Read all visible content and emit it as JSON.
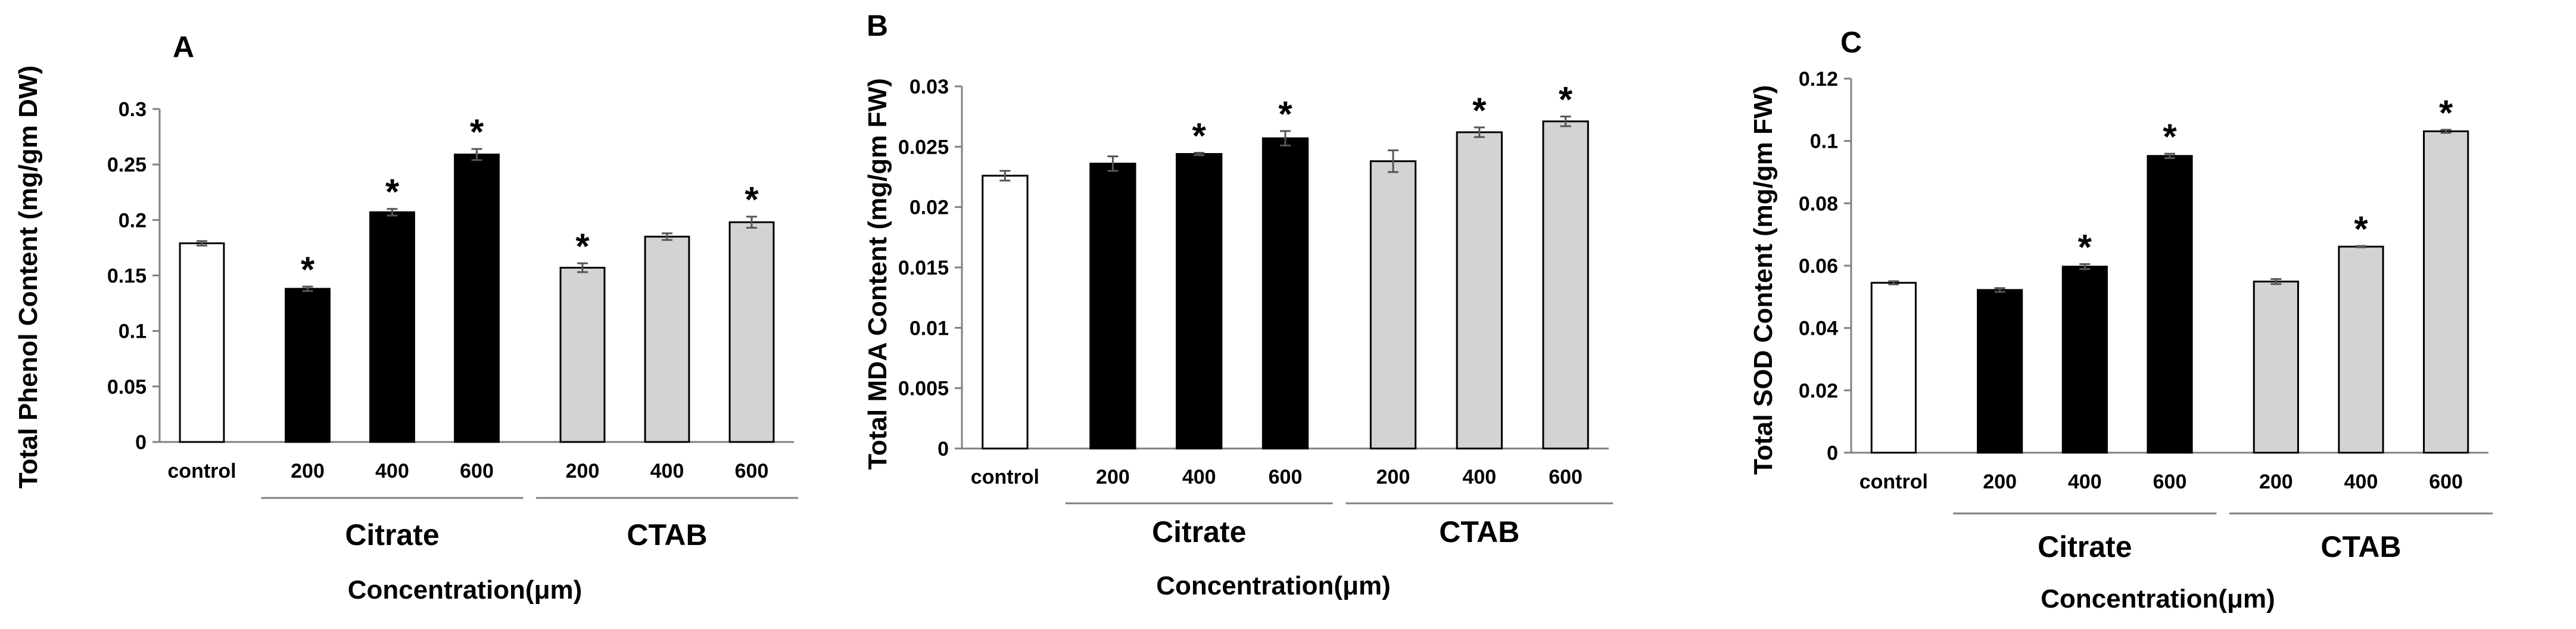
{
  "chart_data": [
    {
      "panel": "A",
      "type": "bar",
      "ylabel": "Total Phenol Content (mg/gm DW)",
      "xlabel": "Concentration(μm)",
      "ylim": [
        0,
        0.3
      ],
      "yticks": [
        "0",
        "0.05",
        "0.1",
        "0.15",
        "0.2",
        "0.25",
        "0.3"
      ],
      "categories": [
        "control",
        "200",
        "400",
        "600",
        "200",
        "400",
        "600"
      ],
      "groups": [
        {
          "label": "Citrate",
          "members": [
            1,
            2,
            3
          ]
        },
        {
          "label": "CTAB",
          "members": [
            4,
            5,
            6
          ]
        }
      ],
      "values": [
        0.179,
        0.138,
        0.207,
        0.259,
        0.157,
        0.185,
        0.198
      ],
      "errors": [
        0.002,
        0.002,
        0.003,
        0.005,
        0.004,
        0.003,
        0.005
      ],
      "significant": [
        false,
        true,
        true,
        true,
        true,
        false,
        true
      ],
      "fills": [
        "#ffffff",
        "#000000",
        "#000000",
        "#000000",
        "#d3d3d3",
        "#d3d3d3",
        "#d3d3d3"
      ],
      "sig_marker": "*"
    },
    {
      "panel": "B",
      "type": "bar",
      "ylabel": "Total MDA Content (mg/gm FW)",
      "xlabel": "Concentration(μm)",
      "ylim": [
        0,
        0.03
      ],
      "yticks": [
        "0",
        "0.005",
        "0.01",
        "0.015",
        "0.02",
        "0.025",
        "0.03"
      ],
      "categories": [
        "control",
        "200",
        "400",
        "600",
        "200",
        "400",
        "600"
      ],
      "groups": [
        {
          "label": "Citrate",
          "members": [
            1,
            2,
            3
          ]
        },
        {
          "label": "CTAB",
          "members": [
            4,
            5,
            6
          ]
        }
      ],
      "values": [
        0.0226,
        0.0236,
        0.0244,
        0.0257,
        0.0238,
        0.0262,
        0.0271
      ],
      "errors": [
        0.0004,
        0.0006,
        0.0001,
        0.0006,
        0.0009,
        0.0004,
        0.0004
      ],
      "significant": [
        false,
        false,
        true,
        true,
        false,
        true,
        true
      ],
      "fills": [
        "#ffffff",
        "#000000",
        "#000000",
        "#000000",
        "#d3d3d3",
        "#d3d3d3",
        "#d3d3d3"
      ],
      "sig_marker": "*"
    },
    {
      "panel": "C",
      "type": "bar",
      "ylabel": "Total SOD Content (mg/gm FW)",
      "xlabel": "Concentration(μm)",
      "ylim": [
        0,
        0.12
      ],
      "yticks": [
        "0",
        "0.02",
        "0.04",
        "0.06",
        "0.08",
        "0.1",
        "0.12"
      ],
      "categories": [
        "control",
        "200",
        "400",
        "600",
        "200",
        "400",
        "600"
      ],
      "groups": [
        {
          "label": "Citrate",
          "members": [
            1,
            2,
            3
          ]
        },
        {
          "label": "CTAB",
          "members": [
            4,
            5,
            6
          ]
        }
      ],
      "values": [
        0.0545,
        0.0522,
        0.0597,
        0.0952,
        0.0549,
        0.0661,
        0.1031
      ],
      "errors": [
        0.0005,
        0.0006,
        0.0008,
        0.0007,
        0.0008,
        0.0002,
        0.0005
      ],
      "significant": [
        false,
        false,
        true,
        true,
        false,
        true,
        true
      ],
      "fills": [
        "#ffffff",
        "#000000",
        "#000000",
        "#000000",
        "#d3d3d3",
        "#d3d3d3",
        "#d3d3d3"
      ],
      "sig_marker": "*"
    }
  ]
}
